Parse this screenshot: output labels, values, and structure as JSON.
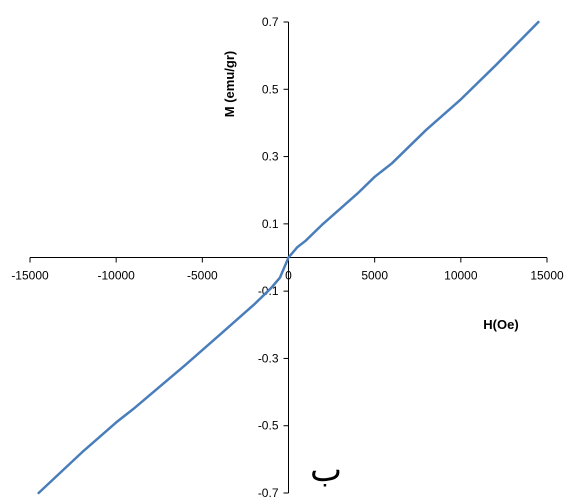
{
  "chart_data": {
    "type": "line",
    "xlabel": "H(Oe)",
    "ylabel": "M (emu/gr)",
    "xlim": [
      -15000,
      15000
    ],
    "ylim": [
      -0.7,
      0.7
    ],
    "x_ticks": [
      "-15000",
      "-10000",
      "-5000",
      "0",
      "5000",
      "10000",
      "15000"
    ],
    "y_ticks": [
      "0.7",
      "0.5",
      "0.3",
      "0.1",
      "-0.1",
      "-0.3",
      "-0.5",
      "-0.7"
    ],
    "grid": false,
    "legend": "none",
    "panel_label": "ب",
    "series": [
      {
        "color": "#4a7ebb",
        "x": [
          -14500,
          -12000,
          -10000,
          -9000,
          -6000,
          -4000,
          -2000,
          -1000,
          -500,
          0,
          500,
          1000,
          2000,
          4000,
          5000,
          6000,
          8000,
          10000,
          12000,
          14500
        ],
        "y": [
          -0.7,
          -0.58,
          -0.49,
          -0.45,
          -0.32,
          -0.23,
          -0.14,
          -0.09,
          -0.06,
          0.0,
          0.03,
          0.05,
          0.1,
          0.19,
          0.24,
          0.28,
          0.38,
          0.47,
          0.57,
          0.7
        ]
      }
    ]
  }
}
